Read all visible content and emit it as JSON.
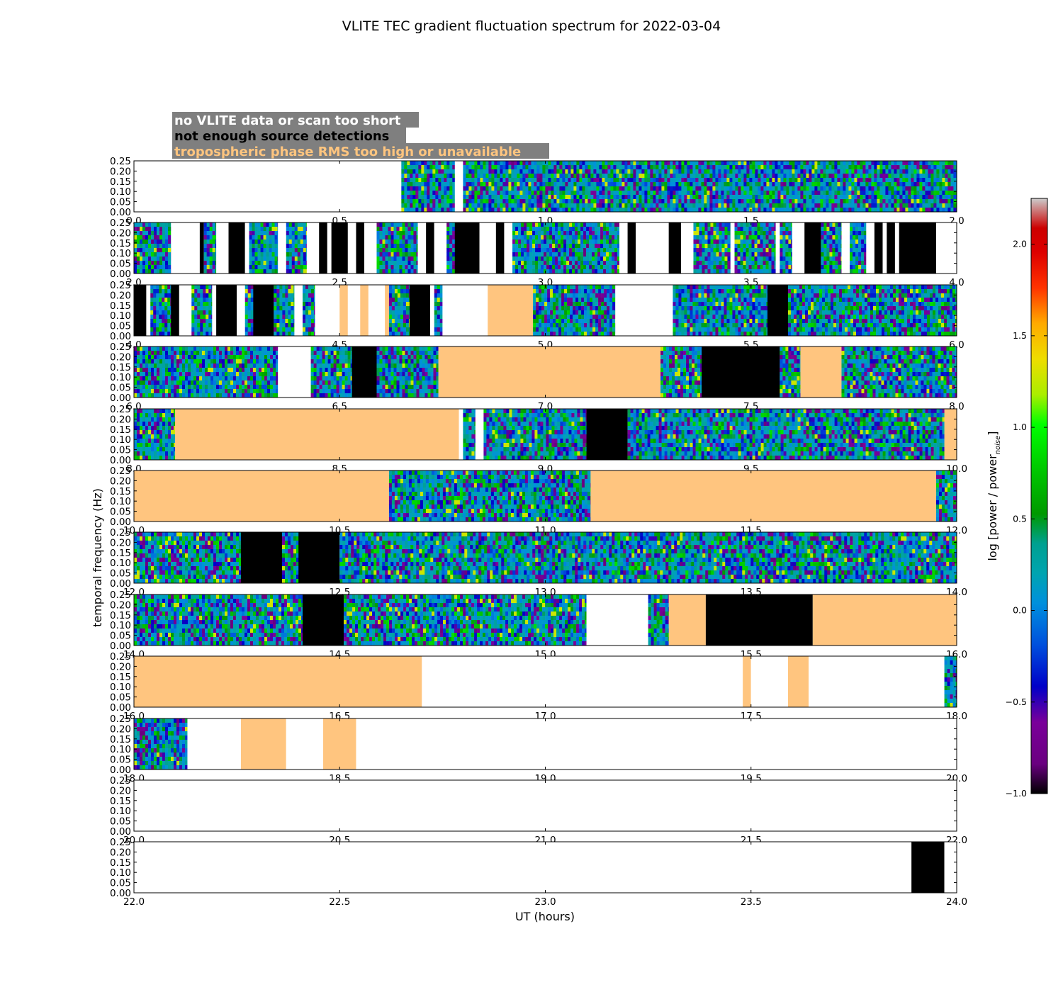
{
  "chart_data": {
    "type": "heatmap",
    "title": "VLITE TEC gradient fluctuation spectrum for 2022-03-04",
    "xlabel": "UT (hours)",
    "ylabel": "temporal frequency (Hz)",
    "colorbar_label": "log [power / power",
    "colorbar_label_sub": "noise",
    "colorbar_label_end": "]",
    "colorbar_range": [
      -1.0,
      2.25
    ],
    "colorbar_ticks": [
      "−1.0",
      "−0.5",
      "0.0",
      "0.5",
      "1.0",
      "1.5",
      "2.0"
    ],
    "colorbar_tick_values": [
      -1.0,
      -0.5,
      0.0,
      0.5,
      1.0,
      1.5,
      2.0
    ],
    "colormap": "nipy_spectral",
    "ylim": [
      0,
      0.25
    ],
    "ytick_labels": [
      "0.00",
      "0.05",
      "0.10",
      "0.15",
      "0.20",
      "0.25"
    ],
    "ytick_values": [
      0,
      0.05,
      0.1,
      0.15,
      0.2,
      0.25
    ],
    "legend": [
      {
        "label": "no VLITE data or scan too short",
        "color": "#ffffff"
      },
      {
        "label": "not enough source detections",
        "color": "#000000"
      },
      {
        "label": "tropospheric phase RMS too high or unavailable",
        "color": "#ffc57f"
      }
    ],
    "legend_box_color": "#7f7f7f",
    "panels": [
      {
        "xlim": [
          0,
          2
        ],
        "xtick_labels": [
          "0.0",
          "0.5",
          "1.0",
          "1.5",
          "2.0"
        ],
        "segments": [
          [
            "N",
            0,
            0.65
          ],
          [
            "S",
            0.65,
            0.78
          ],
          [
            "N",
            0.78,
            0.8
          ],
          [
            "S",
            0.8,
            2
          ]
        ]
      },
      {
        "xlim": [
          2,
          4
        ],
        "xtick_labels": [
          "2.0",
          "2.5",
          "3.0",
          "3.5",
          "4.0"
        ],
        "segments": [
          [
            "S",
            2,
            2.09
          ],
          [
            "N",
            2.09,
            2.16
          ],
          [
            "B",
            2.16,
            2.17
          ],
          [
            "S",
            2.17,
            2.2
          ],
          [
            "N",
            2.2,
            2.23
          ],
          [
            "B",
            2.23,
            2.27
          ],
          [
            "N",
            2.27,
            2.28
          ],
          [
            "S",
            2.28,
            2.35
          ],
          [
            "N",
            2.35,
            2.37
          ],
          [
            "S",
            2.37,
            2.42
          ],
          [
            "N",
            2.42,
            2.45
          ],
          [
            "B",
            2.45,
            2.47
          ],
          [
            "N",
            2.47,
            2.48
          ],
          [
            "B",
            2.48,
            2.52
          ],
          [
            "N",
            2.52,
            2.54
          ],
          [
            "B",
            2.54,
            2.56
          ],
          [
            "N",
            2.56,
            2.59
          ],
          [
            "S",
            2.59,
            2.69
          ],
          [
            "N",
            2.69,
            2.71
          ],
          [
            "B",
            2.71,
            2.73
          ],
          [
            "N",
            2.73,
            2.76
          ],
          [
            "S",
            2.76,
            2.78
          ],
          [
            "B",
            2.78,
            2.84
          ],
          [
            "N",
            2.84,
            2.88
          ],
          [
            "B",
            2.88,
            2.9
          ],
          [
            "N",
            2.9,
            2.92
          ],
          [
            "S",
            2.92,
            3.18
          ],
          [
            "N",
            3.18,
            3.2
          ],
          [
            "B",
            3.2,
            3.22
          ],
          [
            "N",
            3.22,
            3.3
          ],
          [
            "B",
            3.3,
            3.33
          ],
          [
            "N",
            3.33,
            3.36
          ],
          [
            "S",
            3.36,
            3.45
          ],
          [
            "N",
            3.45,
            3.46
          ],
          [
            "S",
            3.46,
            3.56
          ],
          [
            "N",
            3.56,
            3.57
          ],
          [
            "S",
            3.57,
            3.6
          ],
          [
            "N",
            3.6,
            3.63
          ],
          [
            "B",
            3.63,
            3.67
          ],
          [
            "S",
            3.67,
            3.72
          ],
          [
            "N",
            3.72,
            3.74
          ],
          [
            "S",
            3.74,
            3.78
          ],
          [
            "N",
            3.78,
            3.8
          ],
          [
            "B",
            3.8,
            3.82
          ],
          [
            "N",
            3.82,
            3.83
          ],
          [
            "B",
            3.83,
            3.85
          ],
          [
            "N",
            3.85,
            3.86
          ],
          [
            "B",
            3.86,
            3.95
          ],
          [
            "N",
            3.95,
            4
          ]
        ]
      },
      {
        "xlim": [
          4,
          6
        ],
        "xtick_labels": [
          "4.0",
          "4.5",
          "5.0",
          "5.5",
          "6.0"
        ],
        "segments": [
          [
            "B",
            4,
            4.03
          ],
          [
            "N",
            4.03,
            4.04
          ],
          [
            "S",
            4.04,
            4.09
          ],
          [
            "B",
            4.09,
            4.11
          ],
          [
            "N",
            4.11,
            4.14
          ],
          [
            "S",
            4.14,
            4.19
          ],
          [
            "N",
            4.19,
            4.2
          ],
          [
            "B",
            4.2,
            4.25
          ],
          [
            "N",
            4.25,
            4.27
          ],
          [
            "S",
            4.27,
            4.29
          ],
          [
            "B",
            4.29,
            4.34
          ],
          [
            "S",
            4.34,
            4.39
          ],
          [
            "N",
            4.39,
            4.41
          ],
          [
            "S",
            4.41,
            4.44
          ],
          [
            "N",
            4.44,
            4.5
          ],
          [
            "T",
            4.5,
            4.52
          ],
          [
            "N",
            4.52,
            4.55
          ],
          [
            "T",
            4.55,
            4.57
          ],
          [
            "N",
            4.57,
            4.61
          ],
          [
            "T",
            4.61,
            4.62
          ],
          [
            "S",
            4.62,
            4.67
          ],
          [
            "B",
            4.67,
            4.72
          ],
          [
            "N",
            4.72,
            4.73
          ],
          [
            "S",
            4.73,
            4.75
          ],
          [
            "N",
            4.75,
            4.86
          ],
          [
            "T",
            4.86,
            4.97
          ],
          [
            "S",
            4.97,
            5.17
          ],
          [
            "N",
            5.17,
            5.31
          ],
          [
            "S",
            5.31,
            5.54
          ],
          [
            "B",
            5.54,
            5.59
          ],
          [
            "S",
            5.59,
            6
          ]
        ]
      },
      {
        "xlim": [
          6,
          8
        ],
        "xtick_labels": [
          "6.0",
          "6.5",
          "7.0",
          "7.5",
          "8.0"
        ],
        "segments": [
          [
            "S",
            6,
            6.35
          ],
          [
            "N",
            6.35,
            6.43
          ],
          [
            "S",
            6.43,
            6.53
          ],
          [
            "B",
            6.53,
            6.59
          ],
          [
            "S",
            6.59,
            6.74
          ],
          [
            "T",
            6.74,
            7.28
          ],
          [
            "S",
            7.28,
            7.38
          ],
          [
            "B",
            7.38,
            7.57
          ],
          [
            "S",
            7.57,
            7.62
          ],
          [
            "T",
            7.62,
            7.72
          ],
          [
            "S",
            7.72,
            8
          ]
        ]
      },
      {
        "xlim": [
          8,
          10
        ],
        "xtick_labels": [
          "8.0",
          "8.5",
          "9.0",
          "9.5",
          "10.0"
        ],
        "segments": [
          [
            "S",
            8,
            8.1
          ],
          [
            "T",
            8.1,
            8.79
          ],
          [
            "N",
            8.79,
            8.8
          ],
          [
            "S",
            8.8,
            8.83
          ],
          [
            "N",
            8.83,
            8.85
          ],
          [
            "S",
            8.85,
            9.1
          ],
          [
            "B",
            9.1,
            9.2
          ],
          [
            "S",
            9.2,
            9.97
          ],
          [
            "T",
            9.97,
            10
          ]
        ]
      },
      {
        "xlim": [
          10,
          12
        ],
        "xtick_labels": [
          "10.0",
          "10.5",
          "11.0",
          "11.5",
          "12.0"
        ],
        "segments": [
          [
            "T",
            10,
            10.62
          ],
          [
            "S",
            10.62,
            11.11
          ],
          [
            "T",
            11.11,
            11.95
          ],
          [
            "S",
            11.95,
            12
          ]
        ]
      },
      {
        "xlim": [
          12,
          14
        ],
        "xtick_labels": [
          "12.0",
          "12.5",
          "13.0",
          "13.5",
          "14.0"
        ],
        "segments": [
          [
            "S",
            12,
            12.26
          ],
          [
            "B",
            12.26,
            12.36
          ],
          [
            "S",
            12.36,
            12.4
          ],
          [
            "B",
            12.4,
            12.5
          ],
          [
            "S",
            12.5,
            14
          ]
        ]
      },
      {
        "xlim": [
          14,
          16
        ],
        "xtick_labels": [
          "14.0",
          "14.5",
          "15.0",
          "15.5",
          "16.0"
        ],
        "segments": [
          [
            "S",
            14,
            14.41
          ],
          [
            "B",
            14.41,
            14.51
          ],
          [
            "S",
            14.51,
            15.1
          ],
          [
            "N",
            15.1,
            15.25
          ],
          [
            "S",
            15.25,
            15.3
          ],
          [
            "T",
            15.3,
            15.39
          ],
          [
            "B",
            15.39,
            15.65
          ],
          [
            "T",
            15.65,
            16
          ]
        ]
      },
      {
        "xlim": [
          16,
          18
        ],
        "xtick_labels": [
          "16.0",
          "16.5",
          "17.0",
          "17.5",
          "18.0"
        ],
        "segments": [
          [
            "T",
            16,
            16.7
          ],
          [
            "N",
            16.7,
            17.48
          ],
          [
            "T",
            17.48,
            17.5
          ],
          [
            "N",
            17.5,
            17.59
          ],
          [
            "T",
            17.59,
            17.64
          ],
          [
            "N",
            17.64,
            17.97
          ],
          [
            "S",
            17.97,
            18
          ]
        ]
      },
      {
        "xlim": [
          18,
          20
        ],
        "xtick_labels": [
          "18.0",
          "18.5",
          "19.0",
          "19.5",
          "20.0"
        ],
        "segments": [
          [
            "S",
            18,
            18.13
          ],
          [
            "N",
            18.13,
            18.26
          ],
          [
            "T",
            18.26,
            18.37
          ],
          [
            "N",
            18.37,
            18.46
          ],
          [
            "T",
            18.46,
            18.54
          ],
          [
            "N",
            18.54,
            20
          ]
        ]
      },
      {
        "xlim": [
          20,
          22
        ],
        "xtick_labels": [
          "20.0",
          "20.5",
          "21.0",
          "21.5",
          "22.0"
        ],
        "segments": [
          [
            "N",
            20,
            22
          ]
        ]
      },
      {
        "xlim": [
          22,
          24
        ],
        "xtick_labels": [
          "22.0",
          "22.5",
          "23.0",
          "23.5",
          "24.0"
        ],
        "segments": [
          [
            "N",
            22,
            23.89
          ],
          [
            "B",
            23.89,
            23.97
          ],
          [
            "N",
            23.97,
            24
          ]
        ]
      }
    ]
  }
}
